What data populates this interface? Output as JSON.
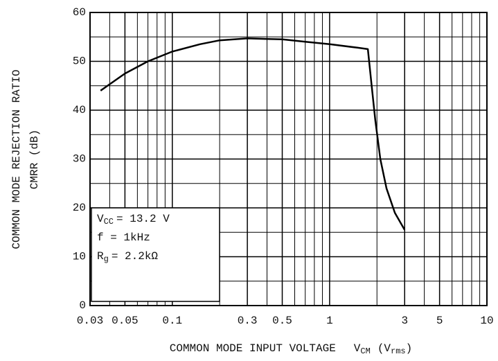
{
  "chart_data": {
    "type": "line",
    "ylabel": "COMMON MODE REJECTION RATIO",
    "ylabel2": "CMRR (dB)",
    "xlabel": "COMMON MODE INPUT VOLTAGE",
    "xlabel_symbol": {
      "main": "V",
      "sub": "CM"
    },
    "xlabel_unit": {
      "open": "(V",
      "sub": "rms",
      "close": ")"
    },
    "annotations": [
      {
        "main": "V",
        "sub": "CC",
        "rest": "= 13.2 V"
      },
      {
        "main": "f = 1kHz"
      },
      {
        "main": "R",
        "sub": "g",
        "rest": "= 2.2kΩ"
      }
    ],
    "xscale": "log",
    "xlim": [
      0.03,
      10
    ],
    "xticks": [
      0.03,
      0.05,
      0.1,
      0.3,
      0.5,
      1,
      3,
      5,
      10
    ],
    "xminor": [
      0.04,
      0.06,
      0.07,
      0.08,
      0.09,
      0.2,
      0.4,
      0.6,
      0.7,
      0.8,
      0.9,
      2,
      4,
      6,
      7,
      8,
      9
    ],
    "ylim": [
      0,
      60
    ],
    "yticks": [
      0,
      10,
      20,
      30,
      40,
      50,
      60
    ],
    "yminor": [
      5,
      15,
      25,
      35,
      45,
      55
    ],
    "grid": true,
    "series": [
      {
        "name": "CMRR",
        "color": "#000000",
        "x": [
          0.035,
          0.05,
          0.07,
          0.1,
          0.15,
          0.2,
          0.3,
          0.5,
          0.7,
          1,
          1.5,
          1.75,
          1.85,
          1.95,
          2.1,
          2.3,
          2.6,
          3
        ],
        "values": [
          44,
          47.5,
          50,
          52,
          53.5,
          54.3,
          54.7,
          54.5,
          54,
          53.5,
          52.8,
          52.5,
          45,
          38,
          30,
          24,
          19,
          15.5
        ]
      }
    ]
  }
}
